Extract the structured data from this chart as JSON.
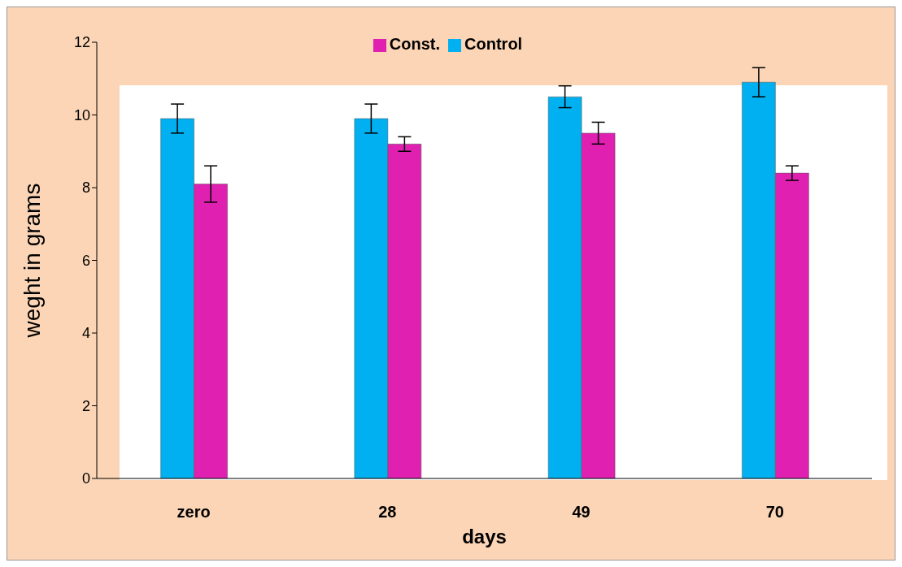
{
  "chart_data": {
    "type": "bar",
    "xlabel": "days",
    "ylabel": "weght in grams",
    "categories": [
      "zero",
      "28",
      "49",
      "70"
    ],
    "series": [
      {
        "name": "Control",
        "color": "#00b0f0",
        "values": [
          9.9,
          9.9,
          10.5,
          10.9
        ],
        "errors": [
          0.4,
          0.4,
          0.3,
          0.4
        ]
      },
      {
        "name": "Const.",
        "color": "#e020b0",
        "values": [
          8.1,
          9.2,
          9.5,
          8.4
        ],
        "errors": [
          0.5,
          0.2,
          0.3,
          0.2
        ]
      }
    ],
    "ylim": [
      0,
      12
    ],
    "yticks": [
      0,
      2,
      4,
      6,
      8,
      10,
      12
    ],
    "grid": false,
    "legend": "top"
  }
}
